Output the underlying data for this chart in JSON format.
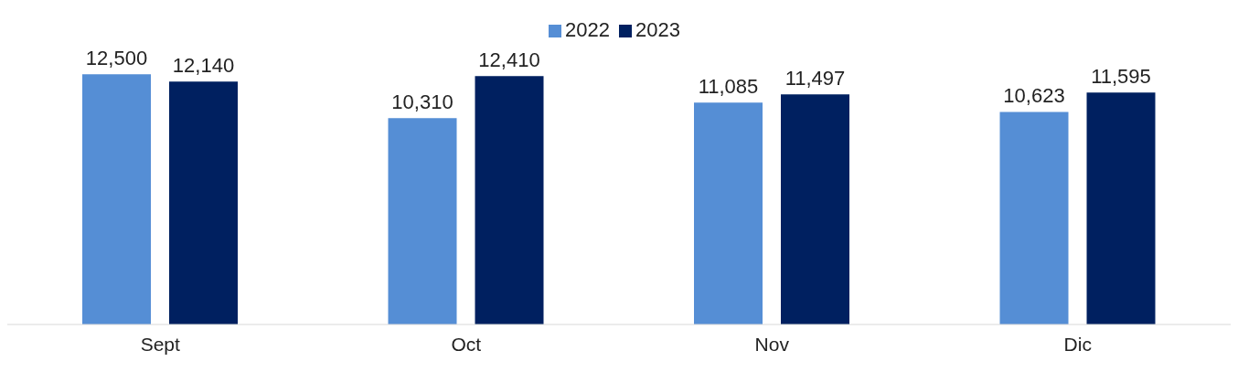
{
  "chart_data": {
    "type": "bar",
    "categories": [
      "Sept",
      "Oct",
      "Nov",
      "Dic"
    ],
    "series": [
      {
        "name": "2022",
        "color": "#558ed5",
        "values": [
          12500,
          10310,
          11085,
          10623
        ],
        "value_labels": [
          "12,500",
          "10,310",
          "11,085",
          "10,623"
        ]
      },
      {
        "name": "2023",
        "color": "#002060",
        "values": [
          12140,
          12410,
          11497,
          11595
        ],
        "value_labels": [
          "12,140",
          "12,410",
          "11,497",
          "11,595"
        ]
      }
    ],
    "legend": "top"
  }
}
